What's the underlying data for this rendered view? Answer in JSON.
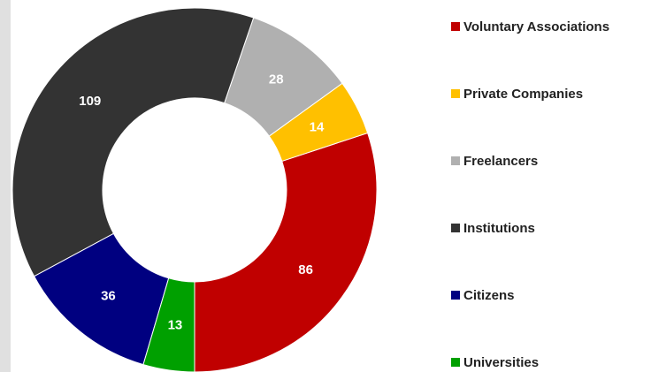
{
  "chart_data": {
    "type": "donut",
    "categories": [
      "Voluntary Associations",
      "Private Companies",
      "Freelancers",
      "Institutions",
      "Citizens",
      "Universities"
    ],
    "values": [
      86,
      14,
      28,
      109,
      36,
      13
    ],
    "colors": [
      "#c00000",
      "#ffc000",
      "#b0b0b0",
      "#333333",
      "#000080",
      "#00a000"
    ]
  }
}
